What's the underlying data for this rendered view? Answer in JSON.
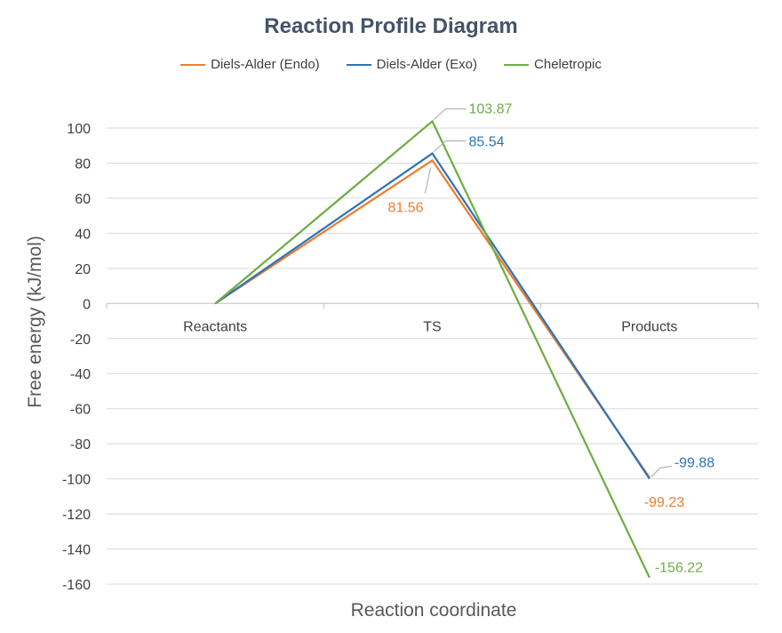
{
  "chart_data": {
    "type": "line",
    "title": "Reaction Profile Diagram",
    "xlabel": "Reaction coordinate",
    "ylabel": "Free energy (kJ/mol)",
    "categories": [
      "Reactants",
      "TS",
      "Products"
    ],
    "ylim": [
      -160,
      100
    ],
    "y_ticks": [
      100,
      80,
      60,
      40,
      20,
      0,
      -20,
      -40,
      -60,
      -80,
      -100,
      -120,
      -140,
      -160
    ],
    "grid": true,
    "legend_position": "top",
    "series": [
      {
        "name": "Diels-Alder (Endo)",
        "color": "#ed7d31",
        "values": [
          0,
          81.56,
          -99.23
        ],
        "data_labels": [
          "",
          "81.56",
          "-99.23"
        ]
      },
      {
        "name": "Diels-Alder (Exo)",
        "color": "#2e75b6",
        "values": [
          0,
          85.54,
          -99.88
        ],
        "data_labels": [
          "",
          "85.54",
          "-99.88"
        ]
      },
      {
        "name": "Cheletropic",
        "color": "#70ad47",
        "values": [
          0,
          103.87,
          -156.22
        ],
        "data_labels": [
          "",
          "103.87",
          "-156.22"
        ]
      }
    ]
  }
}
